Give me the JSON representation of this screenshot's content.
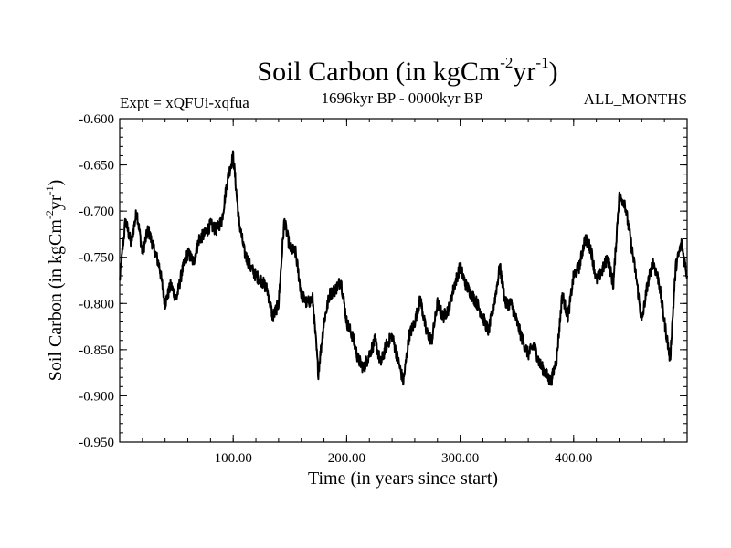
{
  "chart_data": {
    "type": "line",
    "title": {
      "main": "Soil Carbon (in kgCm",
      "sup1": "-2",
      "mid": "yr",
      "sup2": "-1",
      "end": ")"
    },
    "subtitle_left": "Expt = xQFUi-xqfua",
    "subtitle_center": "1696kyr BP - 0000kyr BP",
    "subtitle_right": "ALL_MONTHS",
    "xlabel": "Time (in years since start)",
    "ylabel": {
      "main": "Soil Carbon (in kgCm",
      "sup1": "-2",
      "mid": "yr",
      "sup2": "-1",
      "end": ")"
    },
    "xlim": [
      0,
      500
    ],
    "ylim": [
      -0.95,
      -0.6
    ],
    "x_ticks": [
      100,
      200,
      300,
      400
    ],
    "x_tick_labels": [
      "100.00",
      "200.00",
      "300.00",
      "400.00"
    ],
    "y_ticks": [
      -0.6,
      -0.65,
      -0.7,
      -0.75,
      -0.8,
      -0.85,
      -0.9,
      -0.95
    ],
    "y_tick_labels": [
      "-0.600",
      "-0.650",
      "-0.700",
      "-0.750",
      "-0.800",
      "-0.850",
      "-0.900",
      "-0.950"
    ],
    "series": [
      {
        "name": "Soil Carbon",
        "color": "#000000",
        "x": [
          0,
          5,
          10,
          15,
          20,
          25,
          30,
          35,
          40,
          45,
          50,
          55,
          60,
          65,
          70,
          75,
          80,
          85,
          90,
          95,
          100,
          105,
          110,
          115,
          120,
          125,
          130,
          135,
          140,
          145,
          150,
          155,
          160,
          165,
          170,
          175,
          180,
          185,
          190,
          195,
          200,
          205,
          210,
          215,
          220,
          225,
          230,
          235,
          240,
          245,
          250,
          255,
          260,
          265,
          270,
          275,
          280,
          285,
          290,
          295,
          300,
          305,
          310,
          315,
          320,
          325,
          330,
          335,
          340,
          345,
          350,
          355,
          360,
          365,
          370,
          375,
          380,
          385,
          390,
          395,
          400,
          405,
          410,
          415,
          420,
          425,
          430,
          435,
          440,
          445,
          450,
          455,
          460,
          465,
          470,
          475,
          480,
          485,
          490,
          495,
          500
        ],
        "values": [
          -0.775,
          -0.71,
          -0.735,
          -0.7,
          -0.745,
          -0.72,
          -0.74,
          -0.76,
          -0.8,
          -0.78,
          -0.795,
          -0.765,
          -0.745,
          -0.755,
          -0.73,
          -0.725,
          -0.715,
          -0.72,
          -0.71,
          -0.665,
          -0.64,
          -0.71,
          -0.745,
          -0.76,
          -0.77,
          -0.775,
          -0.785,
          -0.815,
          -0.8,
          -0.71,
          -0.74,
          -0.745,
          -0.79,
          -0.8,
          -0.795,
          -0.875,
          -0.82,
          -0.79,
          -0.785,
          -0.775,
          -0.82,
          -0.835,
          -0.86,
          -0.87,
          -0.855,
          -0.84,
          -0.865,
          -0.845,
          -0.835,
          -0.86,
          -0.885,
          -0.835,
          -0.82,
          -0.795,
          -0.83,
          -0.84,
          -0.8,
          -0.815,
          -0.805,
          -0.78,
          -0.76,
          -0.78,
          -0.79,
          -0.8,
          -0.815,
          -0.83,
          -0.8,
          -0.76,
          -0.8,
          -0.8,
          -0.82,
          -0.84,
          -0.855,
          -0.845,
          -0.865,
          -0.875,
          -0.885,
          -0.86,
          -0.79,
          -0.815,
          -0.77,
          -0.76,
          -0.73,
          -0.74,
          -0.775,
          -0.765,
          -0.75,
          -0.78,
          -0.685,
          -0.69,
          -0.73,
          -0.77,
          -0.82,
          -0.78,
          -0.755,
          -0.775,
          -0.82,
          -0.86,
          -0.76,
          -0.735,
          -0.77
        ]
      }
    ],
    "legend": "none",
    "grid": false
  }
}
